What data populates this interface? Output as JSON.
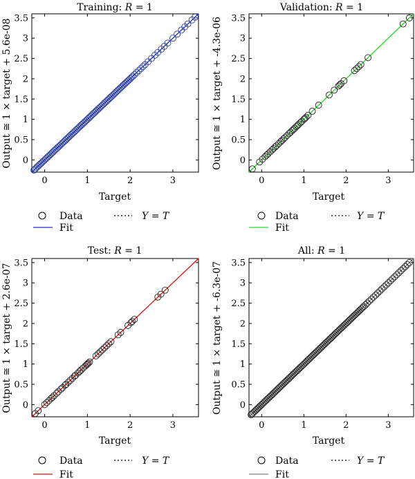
{
  "chart_data": [
    {
      "type": "scatter",
      "title_prefix": "Training: ",
      "title_r_label": "R",
      "title_value": " = 1",
      "xlabel": "Target",
      "ylabel": "Output ≅ 1 × target + 5.6e-08",
      "xlim": [
        -0.3,
        3.6
      ],
      "ylim": [
        -0.3,
        3.6
      ],
      "xticks": [
        0,
        1,
        2,
        3
      ],
      "yticks": [
        0,
        0.5,
        1,
        1.5,
        2,
        2.5,
        3,
        3.5
      ],
      "fit_color": "#1f2fcf",
      "marker_color": "#2a3d9e",
      "points_x": [
        -0.25,
        -0.22,
        -0.19,
        -0.16,
        -0.13,
        -0.1,
        -0.07,
        -0.04,
        -0.01,
        0.02,
        0.05,
        0.08,
        0.11,
        0.14,
        0.17,
        0.2,
        0.23,
        0.26,
        0.29,
        0.32,
        0.35,
        0.38,
        0.41,
        0.44,
        0.47,
        0.5,
        0.53,
        0.56,
        0.59,
        0.62,
        0.65,
        0.68,
        0.71,
        0.74,
        0.77,
        0.8,
        0.83,
        0.86,
        0.89,
        0.92,
        0.95,
        0.98,
        1.01,
        1.04,
        1.07,
        1.1,
        1.13,
        1.16,
        1.19,
        1.22,
        1.25,
        1.28,
        1.31,
        1.34,
        1.37,
        1.4,
        1.43,
        1.46,
        1.49,
        1.52,
        1.55,
        1.58,
        1.61,
        1.64,
        1.67,
        1.7,
        1.73,
        1.76,
        1.79,
        1.82,
        1.85,
        1.88,
        1.91,
        1.94,
        1.97,
        2.0,
        2.03,
        2.06,
        2.1,
        2.15,
        2.2,
        2.25,
        2.3,
        2.35,
        2.42,
        2.5,
        2.58,
        2.65,
        2.73,
        2.8,
        2.88,
        3.0,
        3.1,
        3.2,
        3.28,
        3.35,
        3.45,
        3.52
      ],
      "legend": [
        {
          "marker": "circle",
          "label": "Data"
        },
        {
          "marker": "line",
          "label": "Fit"
        },
        {
          "marker": "dotted",
          "label_prefix": "Y",
          "label_mid": " = ",
          "label_suffix": "T"
        }
      ]
    },
    {
      "type": "scatter",
      "title_prefix": "Validation: ",
      "title_r_label": "R",
      "title_value": " = 1",
      "xlabel": "Target",
      "ylabel": "Output ≅ 1 × target + -4.3e-06",
      "xlim": [
        -0.3,
        3.6
      ],
      "ylim": [
        -0.3,
        3.6
      ],
      "xticks": [
        0,
        1,
        2,
        3
      ],
      "yticks": [
        0,
        0.5,
        1,
        1.5,
        2,
        2.5,
        3,
        3.5
      ],
      "fit_color": "#22dd22",
      "marker_color": "#222222",
      "points_x": [
        -0.22,
        -0.05,
        0.02,
        0.08,
        0.12,
        0.15,
        0.2,
        0.25,
        0.28,
        0.32,
        0.35,
        0.4,
        0.45,
        0.48,
        0.52,
        0.55,
        0.6,
        0.65,
        0.68,
        0.72,
        0.75,
        0.78,
        0.82,
        0.85,
        0.88,
        0.92,
        0.95,
        1.0,
        1.02,
        1.05,
        1.1,
        1.2,
        1.35,
        1.6,
        1.72,
        1.82,
        1.85,
        1.88,
        1.95,
        2.2,
        2.25,
        2.3,
        2.35,
        2.52,
        3.35,
        3.5
      ],
      "legend": [
        {
          "marker": "circle",
          "label": "Data"
        },
        {
          "marker": "line",
          "label": "Fit"
        },
        {
          "marker": "dotted",
          "label_prefix": "Y",
          "label_mid": " = ",
          "label_suffix": "T"
        }
      ]
    },
    {
      "type": "scatter",
      "title_prefix": "Test: ",
      "title_r_label": "R",
      "title_value": " = 1",
      "xlabel": "Target",
      "ylabel": "Output ≅ 1 × target + 2.6e-07",
      "xlim": [
        -0.3,
        3.6
      ],
      "ylim": [
        -0.3,
        3.6
      ],
      "xticks": [
        0,
        1,
        2,
        3
      ],
      "yticks": [
        0,
        0.5,
        1,
        1.5,
        2,
        2.5,
        3,
        3.5
      ],
      "fit_color": "#dd1111",
      "marker_color": "#222222",
      "points_x": [
        -0.22,
        -0.15,
        0.0,
        0.05,
        0.1,
        0.15,
        0.18,
        0.22,
        0.28,
        0.32,
        0.38,
        0.42,
        0.48,
        0.5,
        0.55,
        0.6,
        0.65,
        0.7,
        0.72,
        0.78,
        0.82,
        0.85,
        0.9,
        0.95,
        0.98,
        1.0,
        1.02,
        1.05,
        1.2,
        1.25,
        1.3,
        1.35,
        1.4,
        1.45,
        1.5,
        1.55,
        1.72,
        1.78,
        1.95,
        2.02,
        2.05,
        2.1,
        2.65,
        2.72,
        2.82
      ],
      "legend": [
        {
          "marker": "circle",
          "label": "Data"
        },
        {
          "marker": "line",
          "label": "Fit"
        },
        {
          "marker": "dotted",
          "label_prefix": "Y",
          "label_mid": " = ",
          "label_suffix": "T"
        }
      ]
    },
    {
      "type": "scatter",
      "title_prefix": "All: ",
      "title_r_label": "R",
      "title_value": " = 1",
      "xlabel": "Target",
      "ylabel": "Output ≅ 1 × target + -6.3e-07",
      "xlim": [
        -0.3,
        3.6
      ],
      "ylim": [
        -0.3,
        3.6
      ],
      "xticks": [
        0,
        1,
        2,
        3
      ],
      "yticks": [
        0,
        0.5,
        1,
        1.5,
        2,
        2.5,
        3,
        3.5
      ],
      "fit_color": "#808080",
      "marker_color": "#222222",
      "points_x": [
        -0.25,
        -0.22,
        -0.19,
        -0.16,
        -0.13,
        -0.1,
        -0.07,
        -0.04,
        -0.01,
        0.02,
        0.05,
        0.08,
        0.11,
        0.14,
        0.17,
        0.2,
        0.23,
        0.26,
        0.29,
        0.32,
        0.35,
        0.38,
        0.41,
        0.44,
        0.47,
        0.5,
        0.53,
        0.56,
        0.59,
        0.62,
        0.65,
        0.68,
        0.71,
        0.74,
        0.77,
        0.8,
        0.83,
        0.86,
        0.89,
        0.92,
        0.95,
        0.98,
        1.01,
        1.04,
        1.07,
        1.1,
        1.13,
        1.16,
        1.19,
        1.22,
        1.25,
        1.28,
        1.31,
        1.34,
        1.37,
        1.4,
        1.43,
        1.46,
        1.49,
        1.52,
        1.55,
        1.58,
        1.61,
        1.64,
        1.67,
        1.7,
        1.73,
        1.76,
        1.79,
        1.82,
        1.85,
        1.88,
        1.91,
        1.94,
        1.97,
        2.0,
        2.03,
        2.06,
        2.09,
        2.12,
        2.15,
        2.18,
        2.21,
        2.24,
        2.27,
        2.3,
        2.33,
        2.36,
        2.39,
        2.42,
        2.46,
        2.5,
        2.55,
        2.6,
        2.65,
        2.7,
        2.75,
        2.8,
        2.85,
        2.9,
        2.95,
        3.0,
        3.05,
        3.1,
        3.15,
        3.2,
        3.25,
        3.3,
        3.35,
        3.4,
        3.45,
        3.5
      ],
      "legend": [
        {
          "marker": "circle",
          "label": "Data"
        },
        {
          "marker": "line",
          "label": "Fit"
        },
        {
          "marker": "dotted",
          "label_prefix": "Y",
          "label_mid": " = ",
          "label_suffix": "T"
        }
      ]
    }
  ]
}
